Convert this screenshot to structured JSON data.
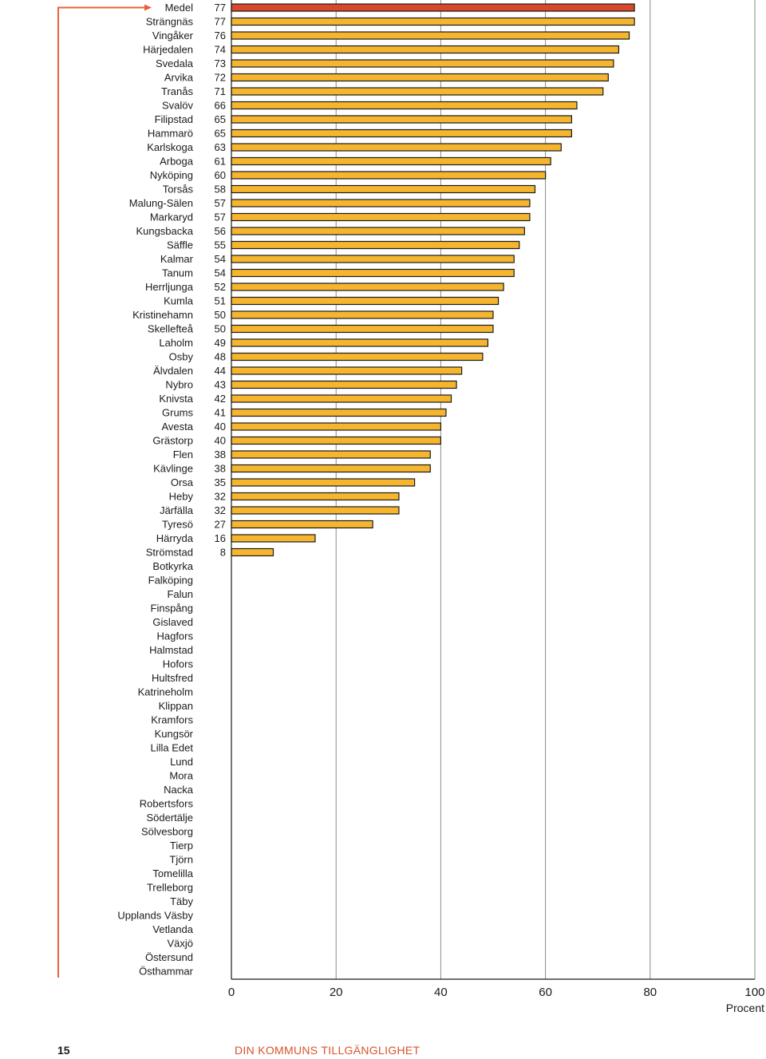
{
  "colors": {
    "highlight_bar": "#d9482b",
    "bar": "#f5b52e",
    "bar_stroke": "#1a1a1a",
    "bracket": "#e8603a",
    "grid": "#8a8a8a",
    "footer_title": "#d9532b"
  },
  "footer": {
    "page_number": "15",
    "section_title": "DIN KOMMUNS TILLGÄNGLIGHET"
  },
  "chart_data": {
    "type": "bar",
    "orientation": "horizontal",
    "title": "",
    "xlabel": "Procent",
    "ylabel": "",
    "xlim": [
      0,
      100
    ],
    "xticks": [
      0,
      20,
      40,
      60,
      80,
      100
    ],
    "grid": true,
    "highlight_category": "Medel",
    "categories": [
      "Medel",
      "Strängnäs",
      "Vingåker",
      "Härjedalen",
      "Svedala",
      "Arvika",
      "Tranås",
      "Svalöv",
      "Filipstad",
      "Hammarö",
      "Karlskoga",
      "Arboga",
      "Nyköping",
      "Torsås",
      "Malung-Sälen",
      "Markaryd",
      "Kungsbacka",
      "Säffle",
      "Kalmar",
      "Tanum",
      "Herrljunga",
      "Kumla",
      "Kristinehamn",
      "Skellefteå",
      "Laholm",
      "Osby",
      "Älvdalen",
      "Nybro",
      "Knivsta",
      "Grums",
      "Avesta",
      "Grästorp",
      "Flen",
      "Kävlinge",
      "Orsa",
      "Heby",
      "Järfälla",
      "Tyresö",
      "Härryda",
      "Strömstad",
      "Botkyrka",
      "Falköping",
      "Falun",
      "Finspång",
      "Gislaved",
      "Hagfors",
      "Halmstad",
      "Hofors",
      "Hultsfred",
      "Katrineholm",
      "Klippan",
      "Kramfors",
      "Kungsör",
      "Lilla Edet",
      "Lund",
      "Mora",
      "Nacka",
      "Robertsfors",
      "Södertälje",
      "Sölvesborg",
      "Tierp",
      "Tjörn",
      "Tomelilla",
      "Trelleborg",
      "Täby",
      "Upplands Väsby",
      "Vetlanda",
      "Växjö",
      "Östersund",
      "Östhammar"
    ],
    "values": [
      77,
      77,
      76,
      74,
      73,
      72,
      71,
      66,
      65,
      65,
      63,
      61,
      60,
      58,
      57,
      57,
      56,
      55,
      54,
      54,
      52,
      51,
      50,
      50,
      49,
      48,
      44,
      43,
      42,
      41,
      40,
      40,
      38,
      38,
      35,
      32,
      32,
      27,
      16,
      8,
      null,
      null,
      null,
      null,
      null,
      null,
      null,
      null,
      null,
      null,
      null,
      null,
      null,
      null,
      null,
      null,
      null,
      null,
      null,
      null,
      null,
      null,
      null,
      null,
      null,
      null,
      null,
      null,
      null,
      null
    ]
  }
}
